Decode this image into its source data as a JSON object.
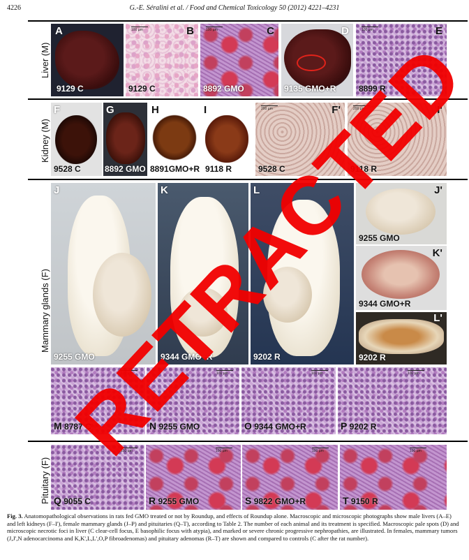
{
  "header": {
    "page_number": "4226",
    "running_head": "G.-E. Séralini et al. / Food and Chemical Toxicology 50 (2012) 4221–4231"
  },
  "rows": {
    "liver": "Liver (M)",
    "kidney": "Kidney (M)",
    "mammary": "Mammary glands (F)",
    "pituitary": "Pituitary (F)"
  },
  "scale_text": "100 µm",
  "scale_text_kidney": "200 µm",
  "panels": {
    "A": {
      "label": "A",
      "id": "9129",
      "group": "C"
    },
    "B": {
      "label": "B",
      "id": "9129",
      "group": "C"
    },
    "C": {
      "label": "C",
      "id": "8892",
      "group": "GMO"
    },
    "D": {
      "label": "D",
      "id": "9135",
      "group": "GMO+R"
    },
    "E": {
      "label": "E",
      "id": "8899",
      "group": "R"
    },
    "F": {
      "label": "F",
      "id": "9528",
      "group": "C"
    },
    "G": {
      "label": "G",
      "id": "8892",
      "group": "GMO"
    },
    "H": {
      "label": "H",
      "id": "8891",
      "group": "GMO+R"
    },
    "I": {
      "label": "I",
      "id": "9118",
      "group": "R"
    },
    "Fp": {
      "label": "F'",
      "id": "9528",
      "group": "C"
    },
    "Ip": {
      "label": "I'",
      "id": "9118",
      "group": "R"
    },
    "J": {
      "label": "J",
      "id": "9255",
      "group": "GMO"
    },
    "K": {
      "label": "K",
      "id": "9344",
      "group": "GMO+R"
    },
    "L": {
      "label": "L",
      "id": "9202",
      "group": "R"
    },
    "Jp": {
      "label": "J'",
      "id": "9255",
      "group": "GMO"
    },
    "Kp": {
      "label": "K'",
      "id": "9344",
      "group": "GMO+R"
    },
    "Lp": {
      "label": "L'",
      "id": "9202",
      "group": "R"
    },
    "M": {
      "label": "M",
      "id": "8787",
      "group": "C"
    },
    "N": {
      "label": "N",
      "id": "9255",
      "group": "GMO"
    },
    "O": {
      "label": "O",
      "id": "9344",
      "group": "GMO+R"
    },
    "P": {
      "label": "P",
      "id": "9202",
      "group": "R"
    },
    "Q": {
      "label": "Q",
      "id": "9055",
      "group": "C"
    },
    "R": {
      "label": "R",
      "id": "9255",
      "group": "GMO"
    },
    "S": {
      "label": "S",
      "id": "9822",
      "group": "GMO+R"
    },
    "T": {
      "label": "T",
      "id": "9150",
      "group": "R"
    }
  },
  "watermark": "RETRACTED",
  "caption": {
    "lead": "Fig. 3.",
    "text": "Anatomopathological observations in rats fed GMO treated or not by Roundup, and effects of Roundup alone. Macroscopic and microscopic photographs show male livers (A–E) and left kidneys (F–I'), female mammary glands (J–P) and pituitaries (Q–T), according to Table 2. The number of each animal and its treatment is specified. Macroscopic pale spots (D) and microscopic necrotic foci in liver (C clear-cell focus, E basophilic focus with atypia), and marked or severe chronic progressive nephropathies, are illustrated. In females, mammary tumors (J,J',N adenocarcinoma and K,K',L,L',O,P fibroadenomas) and pituitary adenomas (R–T) are shown and compared to controls (C after the rat number)."
  }
}
